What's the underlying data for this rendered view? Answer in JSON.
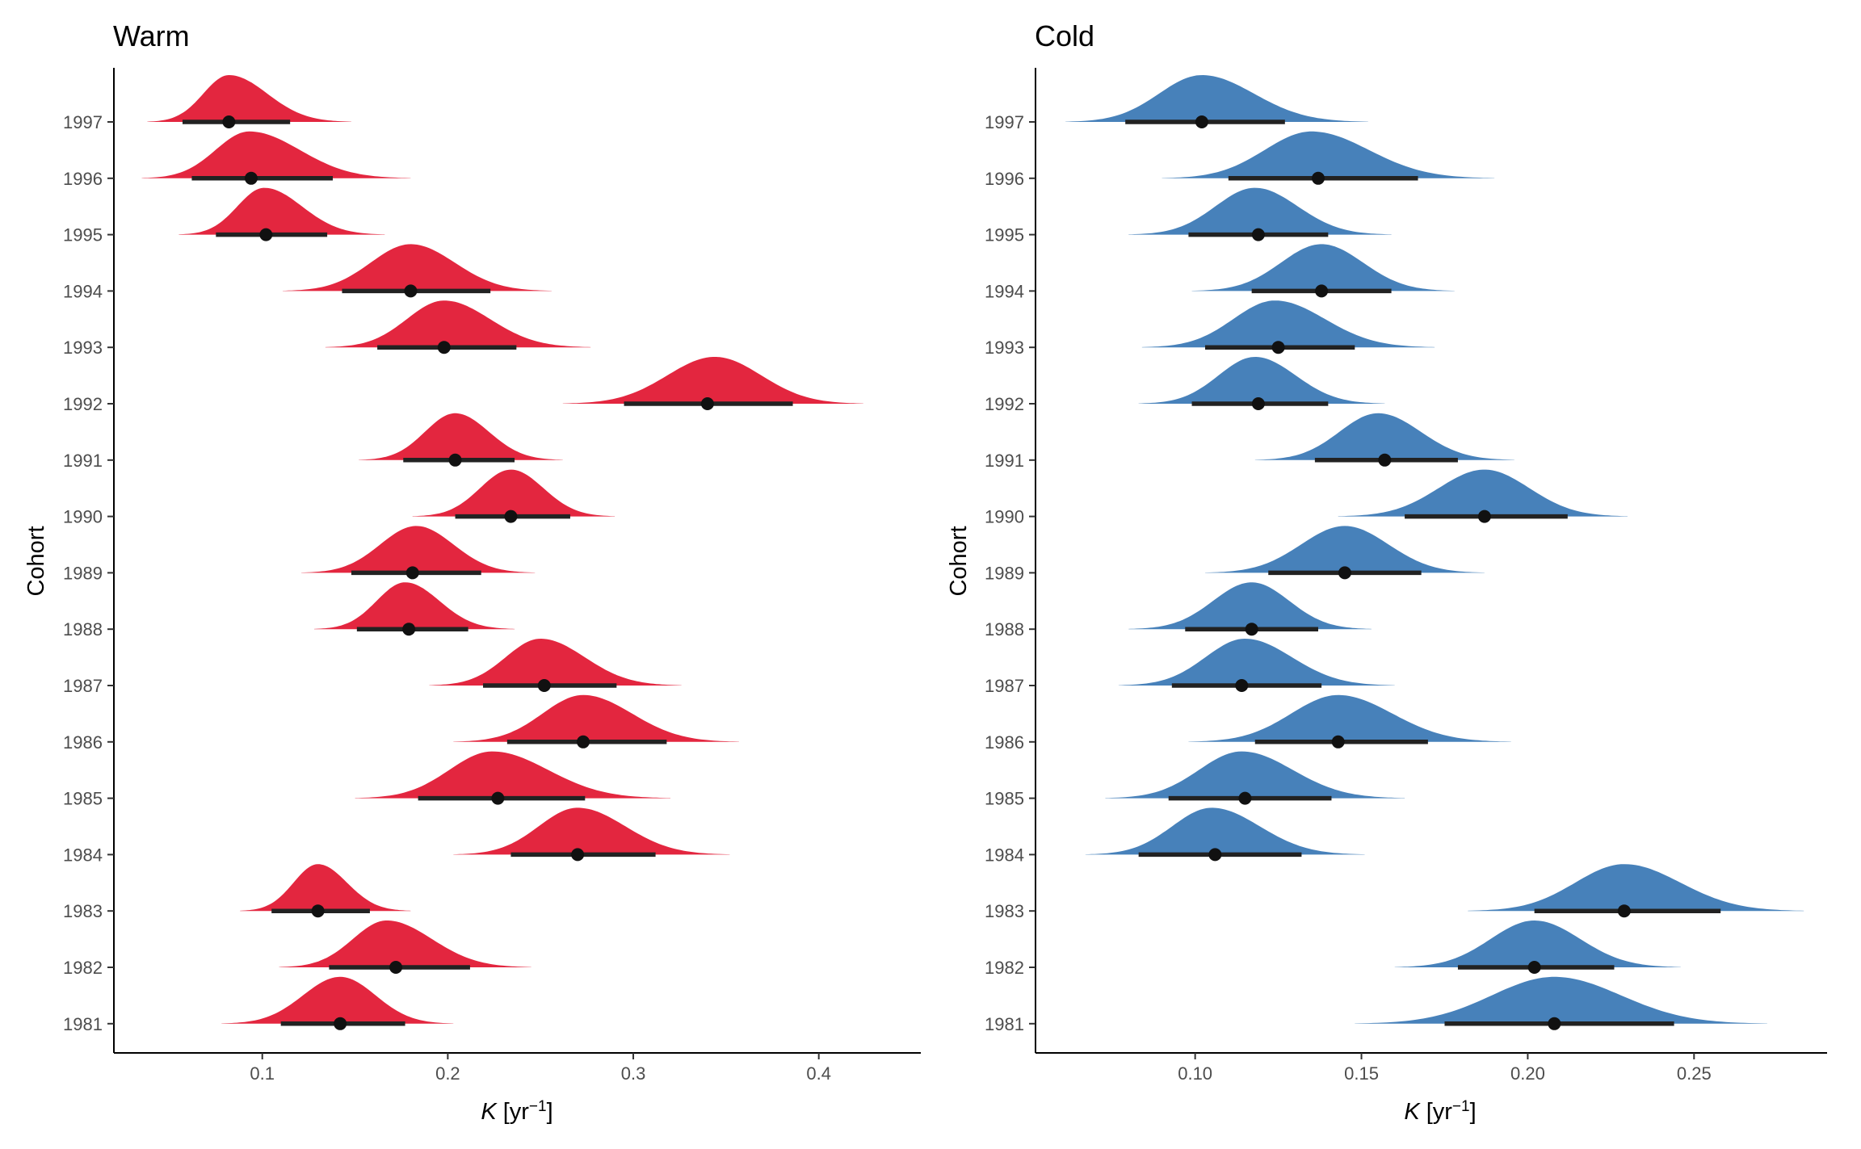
{
  "chart_data": [
    {
      "type": "ridgeline",
      "title": "Warm",
      "xlabel": {
        "symbol": "K",
        "unit_base": "[yr",
        "unit_exp": "−1",
        "unit_close": "]"
      },
      "ylabel": "Cohort",
      "xlim": [
        0.02,
        0.455
      ],
      "xticks": [
        "0.1",
        "0.2",
        "0.3",
        "0.4"
      ],
      "grid": false,
      "color": "#E3263F",
      "categories": [
        "1981",
        "1982",
        "1983",
        "1984",
        "1985",
        "1986",
        "1987",
        "1988",
        "1989",
        "1990",
        "1991",
        "1992",
        "1993",
        "1994",
        "1995",
        "1996",
        "1997"
      ],
      "estimates": [
        {
          "cohort": "1981",
          "median": 0.142,
          "lo": 0.11,
          "hi": 0.177,
          "min": 0.078,
          "max": 0.203,
          "mode": 0.142,
          "skew": 0.0
        },
        {
          "cohort": "1982",
          "median": 0.172,
          "lo": 0.136,
          "hi": 0.212,
          "min": 0.109,
          "max": 0.245,
          "mode": 0.167,
          "skew": 0.1
        },
        {
          "cohort": "1983",
          "median": 0.13,
          "lo": 0.105,
          "hi": 0.158,
          "min": 0.088,
          "max": 0.18,
          "mode": 0.13,
          "skew": 0.05
        },
        {
          "cohort": "1984",
          "median": 0.27,
          "lo": 0.234,
          "hi": 0.312,
          "min": 0.203,
          "max": 0.352,
          "mode": 0.27,
          "skew": 0.0
        },
        {
          "cohort": "1985",
          "median": 0.227,
          "lo": 0.184,
          "hi": 0.274,
          "min": 0.15,
          "max": 0.32,
          "mode": 0.224,
          "skew": 0.05
        },
        {
          "cohort": "1986",
          "median": 0.273,
          "lo": 0.232,
          "hi": 0.318,
          "min": 0.203,
          "max": 0.357,
          "mode": 0.273,
          "skew": 0.0
        },
        {
          "cohort": "1987",
          "median": 0.252,
          "lo": 0.219,
          "hi": 0.291,
          "min": 0.19,
          "max": 0.326,
          "mode": 0.25,
          "skew": 0.0
        },
        {
          "cohort": "1988",
          "median": 0.179,
          "lo": 0.151,
          "hi": 0.211,
          "min": 0.128,
          "max": 0.236,
          "mode": 0.177,
          "skew": 0.0
        },
        {
          "cohort": "1989",
          "median": 0.181,
          "lo": 0.148,
          "hi": 0.218,
          "min": 0.121,
          "max": 0.247,
          "mode": 0.183,
          "skew": -0.05
        },
        {
          "cohort": "1990",
          "median": 0.234,
          "lo": 0.204,
          "hi": 0.266,
          "min": 0.181,
          "max": 0.29,
          "mode": 0.234,
          "skew": 0.0
        },
        {
          "cohort": "1991",
          "median": 0.204,
          "lo": 0.176,
          "hi": 0.236,
          "min": 0.152,
          "max": 0.262,
          "mode": 0.204,
          "skew": 0.0
        },
        {
          "cohort": "1992",
          "median": 0.34,
          "lo": 0.295,
          "hi": 0.386,
          "min": 0.262,
          "max": 0.424,
          "mode": 0.344,
          "skew": 0.0
        },
        {
          "cohort": "1993",
          "median": 0.198,
          "lo": 0.162,
          "hi": 0.237,
          "min": 0.134,
          "max": 0.277,
          "mode": 0.198,
          "skew": 0.05
        },
        {
          "cohort": "1994",
          "median": 0.18,
          "lo": 0.143,
          "hi": 0.223,
          "min": 0.111,
          "max": 0.256,
          "mode": 0.18,
          "skew": 0.05
        },
        {
          "cohort": "1995",
          "median": 0.102,
          "lo": 0.075,
          "hi": 0.135,
          "min": 0.055,
          "max": 0.166,
          "mode": 0.101,
          "skew": 0.1
        },
        {
          "cohort": "1996",
          "median": 0.094,
          "lo": 0.062,
          "hi": 0.138,
          "min": 0.035,
          "max": 0.18,
          "mode": 0.093,
          "skew": 0.15
        },
        {
          "cohort": "1997",
          "median": 0.082,
          "lo": 0.057,
          "hi": 0.115,
          "min": 0.038,
          "max": 0.148,
          "mode": 0.082,
          "skew": 0.1
        }
      ]
    },
    {
      "type": "ridgeline",
      "title": "Cold",
      "xlabel": {
        "symbol": "K",
        "unit_base": "[yr",
        "unit_exp": "−1",
        "unit_close": "]"
      },
      "ylabel": "Cohort",
      "xlim": [
        0.052,
        0.29
      ],
      "xticks": [
        "0.10",
        "0.15",
        "0.20",
        "0.25"
      ],
      "grid": false,
      "color": "#4781BA",
      "categories": [
        "1981",
        "1982",
        "1983",
        "1984",
        "1985",
        "1986",
        "1987",
        "1988",
        "1989",
        "1990",
        "1991",
        "1992",
        "1993",
        "1994",
        "1995",
        "1996",
        "1997"
      ],
      "estimates": [
        {
          "cohort": "1981",
          "median": 0.208,
          "lo": 0.175,
          "hi": 0.244,
          "min": 0.148,
          "max": 0.272,
          "mode": 0.208,
          "skew": 0.0
        },
        {
          "cohort": "1982",
          "median": 0.202,
          "lo": 0.179,
          "hi": 0.226,
          "min": 0.16,
          "max": 0.246,
          "mode": 0.202,
          "skew": 0.0
        },
        {
          "cohort": "1983",
          "median": 0.229,
          "lo": 0.202,
          "hi": 0.258,
          "min": 0.182,
          "max": 0.283,
          "mode": 0.229,
          "skew": 0.0
        },
        {
          "cohort": "1984",
          "median": 0.106,
          "lo": 0.083,
          "hi": 0.132,
          "min": 0.067,
          "max": 0.151,
          "mode": 0.105,
          "skew": 0.0
        },
        {
          "cohort": "1985",
          "median": 0.115,
          "lo": 0.092,
          "hi": 0.141,
          "min": 0.073,
          "max": 0.163,
          "mode": 0.114,
          "skew": 0.0
        },
        {
          "cohort": "1986",
          "median": 0.143,
          "lo": 0.118,
          "hi": 0.17,
          "min": 0.098,
          "max": 0.195,
          "mode": 0.143,
          "skew": 0.0
        },
        {
          "cohort": "1987",
          "median": 0.114,
          "lo": 0.093,
          "hi": 0.138,
          "min": 0.077,
          "max": 0.16,
          "mode": 0.115,
          "skew": 0.0
        },
        {
          "cohort": "1988",
          "median": 0.117,
          "lo": 0.097,
          "hi": 0.137,
          "min": 0.08,
          "max": 0.153,
          "mode": 0.117,
          "skew": 0.0
        },
        {
          "cohort": "1989",
          "median": 0.145,
          "lo": 0.122,
          "hi": 0.168,
          "min": 0.103,
          "max": 0.187,
          "mode": 0.145,
          "skew": 0.0
        },
        {
          "cohort": "1990",
          "median": 0.187,
          "lo": 0.163,
          "hi": 0.212,
          "min": 0.143,
          "max": 0.23,
          "mode": 0.187,
          "skew": 0.0
        },
        {
          "cohort": "1991",
          "median": 0.157,
          "lo": 0.136,
          "hi": 0.179,
          "min": 0.118,
          "max": 0.196,
          "mode": 0.155,
          "skew": 0.0
        },
        {
          "cohort": "1992",
          "median": 0.119,
          "lo": 0.099,
          "hi": 0.14,
          "min": 0.083,
          "max": 0.157,
          "mode": 0.118,
          "skew": 0.0
        },
        {
          "cohort": "1993",
          "median": 0.125,
          "lo": 0.103,
          "hi": 0.148,
          "min": 0.084,
          "max": 0.172,
          "mode": 0.124,
          "skew": 0.0
        },
        {
          "cohort": "1994",
          "median": 0.138,
          "lo": 0.117,
          "hi": 0.159,
          "min": 0.099,
          "max": 0.178,
          "mode": 0.138,
          "skew": 0.0
        },
        {
          "cohort": "1995",
          "median": 0.119,
          "lo": 0.098,
          "hi": 0.14,
          "min": 0.08,
          "max": 0.159,
          "mode": 0.118,
          "skew": 0.0
        },
        {
          "cohort": "1996",
          "median": 0.137,
          "lo": 0.11,
          "hi": 0.167,
          "min": 0.09,
          "max": 0.19,
          "mode": 0.135,
          "skew": 0.05
        },
        {
          "cohort": "1997",
          "median": 0.102,
          "lo": 0.079,
          "hi": 0.127,
          "min": 0.061,
          "max": 0.152,
          "mode": 0.102,
          "skew": 0.05
        }
      ]
    }
  ]
}
